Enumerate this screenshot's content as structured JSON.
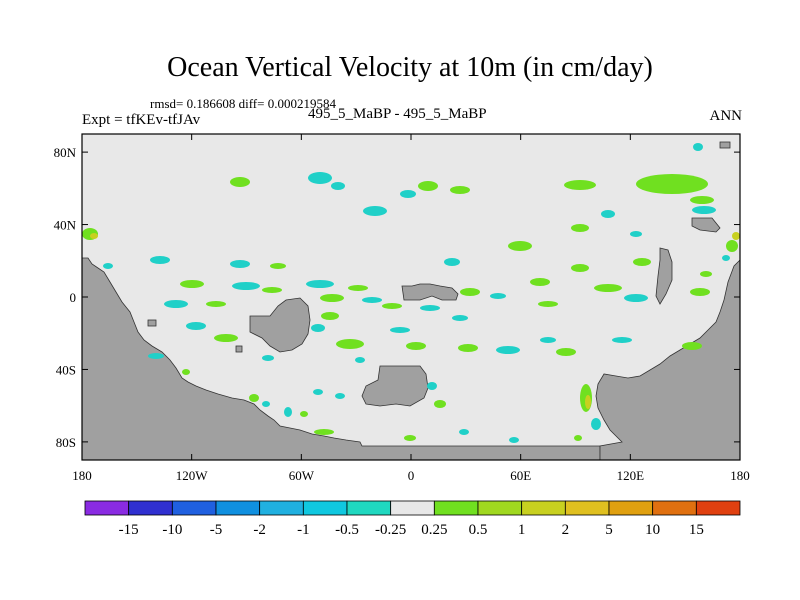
{
  "title": "Ocean Vertical Velocity at 10m (in cm/day)",
  "stats": "rmsd= 0.186608 diff= 0.000219584",
  "expt_label": "Expt = tfKEv-tfJAv",
  "case_label": "495_5_MaBP - 495_5_MaBP",
  "season": "ANN",
  "map": {
    "lon_range": [
      -180,
      180
    ],
    "lat_range": [
      -90,
      90
    ],
    "background_color": "#e8e8e8",
    "land_color": "#a0a0a0",
    "x_ticks": [
      {
        "lon": -180,
        "label": "180"
      },
      {
        "lon": -120,
        "label": "120W"
      },
      {
        "lon": -60,
        "label": "60W"
      },
      {
        "lon": 0,
        "label": "0"
      },
      {
        "lon": 60,
        "label": "60E"
      },
      {
        "lon": 120,
        "label": "120E"
      },
      {
        "lon": 180,
        "label": "180"
      }
    ],
    "y_ticks": [
      {
        "lat": 80,
        "label": "80N"
      },
      {
        "lat": 40,
        "label": "40N"
      },
      {
        "lat": 0,
        "label": "0"
      },
      {
        "lat": -40,
        "label": "40S"
      },
      {
        "lat": -80,
        "label": "80S"
      }
    ]
  },
  "colorbar": {
    "colors": [
      "#8a2be2",
      "#3030d0",
      "#2060e0",
      "#1090e0",
      "#20b0e0",
      "#10c8e0",
      "#20d8c0",
      "#e8e8e8",
      "#70e020",
      "#a0d820",
      "#c8d020",
      "#e0c020",
      "#e0a010",
      "#e07010",
      "#e04010"
    ],
    "labels": [
      "-15",
      "-10",
      "-5",
      "-2",
      "-1",
      "-0.5",
      "-0.25",
      "0.25",
      "0.5",
      "1",
      "2",
      "5",
      "10",
      "15"
    ]
  }
}
